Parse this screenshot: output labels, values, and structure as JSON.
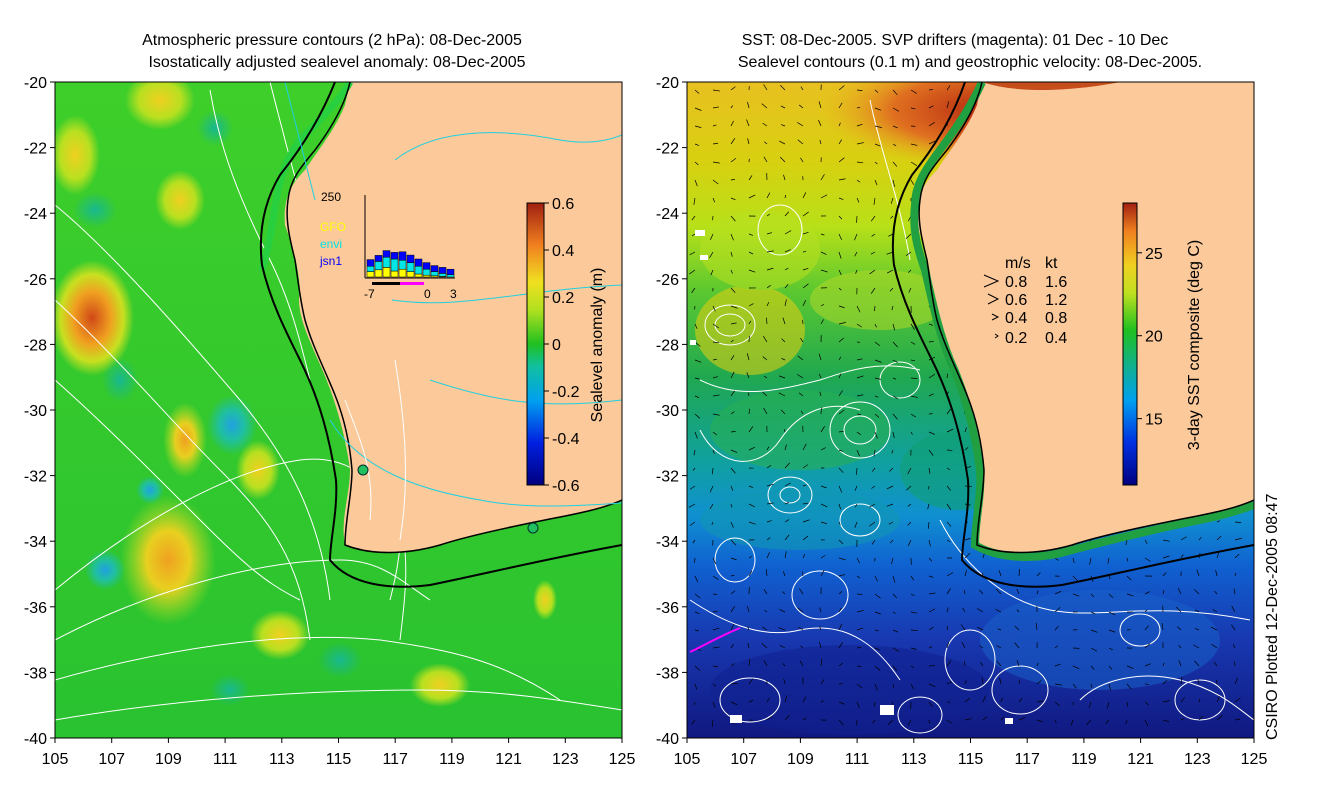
{
  "left_panel": {
    "title_line1": "Atmospheric pressure contours (2 hPa): 08-Dec-2005",
    "title_line2": "Isostatically adjusted sealevel anomaly: 08-Dec-2005",
    "colorbar": {
      "label": "Sealevel anomaly (m)",
      "ticks": [
        "0.6",
        "0.4",
        "0.2",
        "0",
        "-0.2",
        "-0.4",
        "-0.6"
      ],
      "min": -0.6,
      "max": 0.6
    },
    "inset": {
      "ymax_label": "250",
      "legend": [
        {
          "name": "GFO",
          "color": "#ffff00"
        },
        {
          "name": "envi",
          "color": "#00e5e5"
        },
        {
          "name": "jsn1",
          "color": "#0000ff"
        }
      ],
      "x_ticks": [
        "-7",
        "0",
        "3"
      ]
    }
  },
  "right_panel": {
    "title_line1": "SST: 08-Dec-2005. SVP drifters (magenta): 01 Dec - 10 Dec",
    "title_line2": "Sealevel contours (0.1 m) and geostrophic velocity: 08-Dec-2005.",
    "colorbar": {
      "label": "3-day SST composite (deg C)",
      "ticks": [
        "25",
        "20",
        "15"
      ],
      "min": 11,
      "max": 28
    },
    "velocity_legend": {
      "header_ms": "m/s",
      "header_kt": "kt",
      "rows": [
        {
          "ms": "0.8",
          "kt": "1.6"
        },
        {
          "ms": "0.6",
          "kt": "1.2"
        },
        {
          "ms": "0.4",
          "kt": "0.8"
        },
        {
          "ms": "0.2",
          "kt": "0.4"
        }
      ]
    }
  },
  "axes": {
    "lon_ticks": [
      "105",
      "107",
      "109",
      "111",
      "113",
      "115",
      "117",
      "119",
      "121",
      "123",
      "125"
    ],
    "lat_ticks": [
      "-20",
      "-22",
      "-24",
      "-26",
      "-28",
      "-30",
      "-32",
      "-34",
      "-36",
      "-38",
      "-40"
    ],
    "lon_range": [
      105,
      125
    ],
    "lat_range": [
      -40,
      -20
    ]
  },
  "credit": "CSIRO Plotted 12-Dec-2005 08:47",
  "colors": {
    "land": "#fbc99a",
    "coast_line": "#000000",
    "pressure_contour": "#ffffff",
    "sst_contour": "#ffffff",
    "drifter": "#ff00ff"
  }
}
